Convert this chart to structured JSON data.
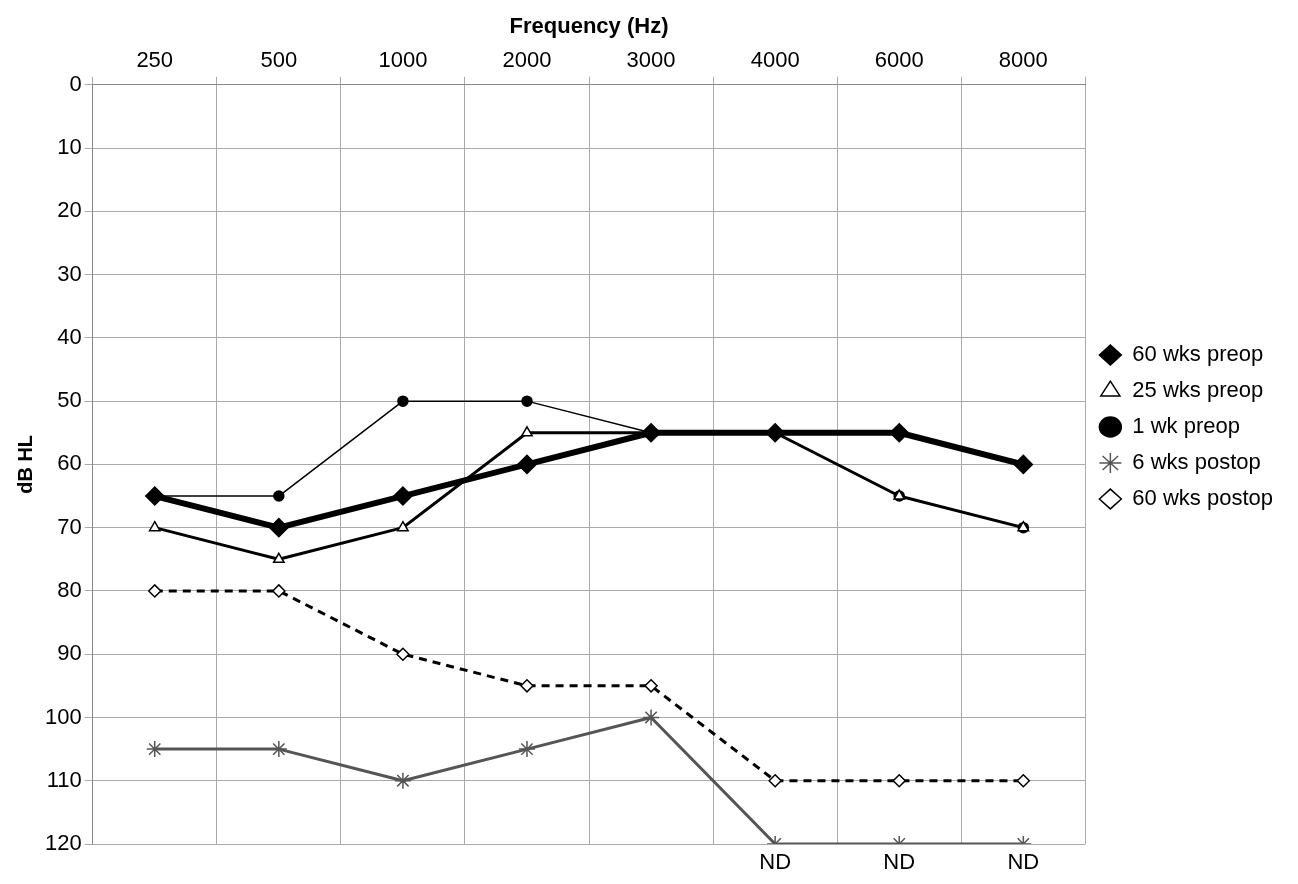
{
  "chart_data": {
    "type": "line",
    "xlabel": "Frequency (Hz)",
    "ylabel": "dB HL",
    "categories": [
      "250",
      "500",
      "1000",
      "2000",
      "3000",
      "4000",
      "6000",
      "8000"
    ],
    "series": [
      {
        "name": "60 wks preop",
        "color": "#000000",
        "marker": "diamond",
        "line_style": "solid",
        "values": [
          65,
          70,
          65,
          60,
          55,
          55,
          55,
          60
        ]
      },
      {
        "name": "25 wks preop",
        "color": "#000000",
        "marker": "triangle",
        "line_style": "solid",
        "values": [
          70,
          75,
          70,
          55,
          55,
          55,
          65,
          70
        ]
      },
      {
        "name": "1 wk preop",
        "color": "#000000",
        "marker": "circle",
        "line_style": "solid",
        "values": [
          65,
          65,
          50,
          50,
          55,
          55,
          65,
          70
        ]
      },
      {
        "name": "6 wks postop",
        "color": "#555555",
        "marker": "cross",
        "line_style": "solid",
        "values": [
          105,
          105,
          110,
          105,
          100,
          120,
          120,
          120
        ]
      },
      {
        "name": "60 wks postop",
        "color": "#000000",
        "marker": "diamond",
        "line_style": "dashed",
        "values": [
          80,
          80,
          90,
          95,
          95,
          110,
          110,
          110
        ]
      }
    ],
    "ylim": [
      120,
      0
    ],
    "yticks": [
      0,
      10,
      20,
      30,
      40,
      50,
      60,
      70,
      80,
      90,
      100,
      110,
      120
    ],
    "grid": true,
    "legend": "right",
    "annotations": [
      {
        "text": "ND",
        "x": "4000",
        "y": 120
      },
      {
        "text": "ND",
        "x": "6000",
        "y": 120
      },
      {
        "text": "ND",
        "x": "8000",
        "y": 120
      }
    ]
  }
}
